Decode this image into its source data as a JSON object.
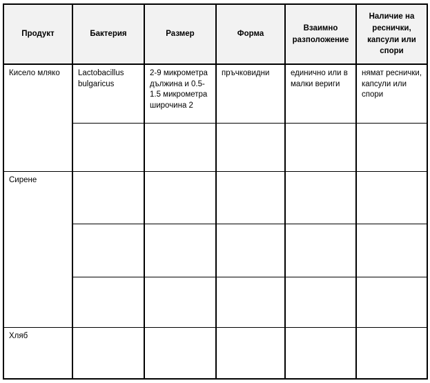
{
  "colors": {
    "header_bg": "#f2f2f2",
    "border": "#000000",
    "page_bg": "#ffffff"
  },
  "table": {
    "headers": [
      "Продукт",
      "Бактерия",
      "Размер",
      "Форма",
      "Взаимно разположение",
      "Наличие на реснички, капсули или спори"
    ],
    "products": {
      "yogurt": "Кисело мляко",
      "cheese": "Сирене",
      "bread": "Хляб"
    },
    "yogurt_row": {
      "bacteria": "Lactobacillus bulgaricus",
      "size": "2-9 микрометра дължина и 0.5-1.5 микрометра широчина 2",
      "shape": "пръчковидни",
      "arrangement": "единично или в малки вериги",
      "features": "нямат реснички, капсули или спори"
    }
  }
}
